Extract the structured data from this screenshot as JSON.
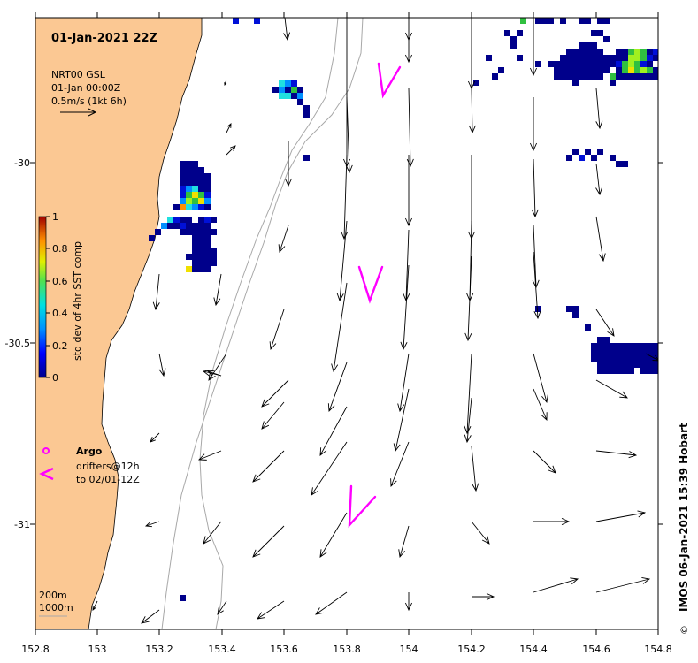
{
  "title": "01-Jan-2021 22Z",
  "legend": {
    "line1": "NRT00 GSL",
    "line2": "01-Jan 00:00Z",
    "line3": "0.5m/s (1kt 6h)"
  },
  "colorbar": {
    "label": "std dev of 4hr SST comp",
    "ticks": [
      "1",
      "0.8",
      "0.6",
      "0.4",
      "0.2",
      "0"
    ]
  },
  "argo": {
    "label": "Argo",
    "drifters_line1": "drifters@12h",
    "drifters_line2": "to 02/01-12Z"
  },
  "isobath_labels": [
    "200m",
    "1000m"
  ],
  "credit": "IMOS 06-Jan-2021 15:39 Hobart",
  "copyright_symbol": "©",
  "axes": {
    "x_ticks": [
      "152.8",
      "153",
      "153.2",
      "153.4",
      "153.6",
      "153.8",
      "154",
      "154.2",
      "154.4",
      "154.6",
      "154.8"
    ],
    "y_ticks": [
      "-30",
      "-30.5",
      "-31"
    ]
  },
  "colors": {
    "land": "#fbc893",
    "drifter": "#ff00ff",
    "isobath": "#a8a8a8",
    "high_sst_std": "#00008b"
  }
}
